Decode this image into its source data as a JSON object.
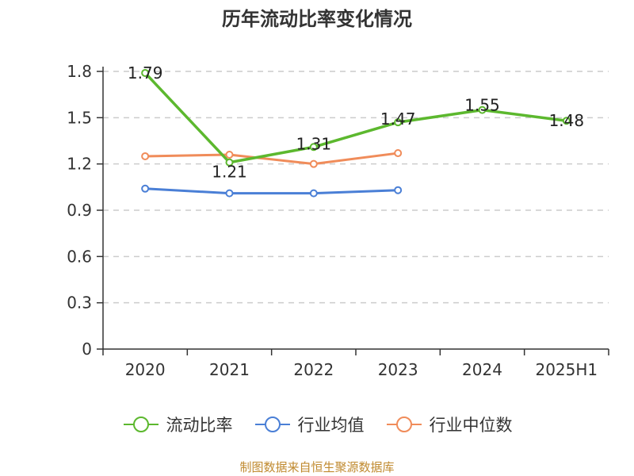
{
  "title": "历年流动比率变化情况",
  "source": "制图数据来自恒生聚源数据库",
  "chart_data": {
    "type": "line",
    "categories": [
      "2020",
      "2021",
      "2022",
      "2023",
      "2024",
      "2025H1"
    ],
    "ylim": [
      0,
      1.8
    ],
    "yticks": [
      0,
      0.3,
      0.6,
      0.9,
      1.2,
      1.5,
      1.8
    ],
    "ytick_labels": [
      "0",
      "0.3",
      "0.6",
      "0.9",
      "1.2",
      "1.5",
      "1.8"
    ],
    "grid": "horizontal-dashed",
    "legend_position": "bottom",
    "series": [
      {
        "name": "流动比率",
        "color": "#5cb82e",
        "values": [
          1.79,
          1.21,
          1.31,
          1.47,
          1.55,
          1.48
        ],
        "labels": [
          "1.79",
          "1.21",
          "1.31",
          "1.47",
          "1.55",
          "1.48"
        ]
      },
      {
        "name": "行业均值",
        "color": "#4a7fd6",
        "values": [
          1.04,
          1.01,
          1.01,
          1.03,
          null,
          null
        ]
      },
      {
        "name": "行业中位数",
        "color": "#f08c5a",
        "values": [
          1.25,
          1.26,
          1.2,
          1.27,
          null,
          null
        ]
      }
    ]
  }
}
